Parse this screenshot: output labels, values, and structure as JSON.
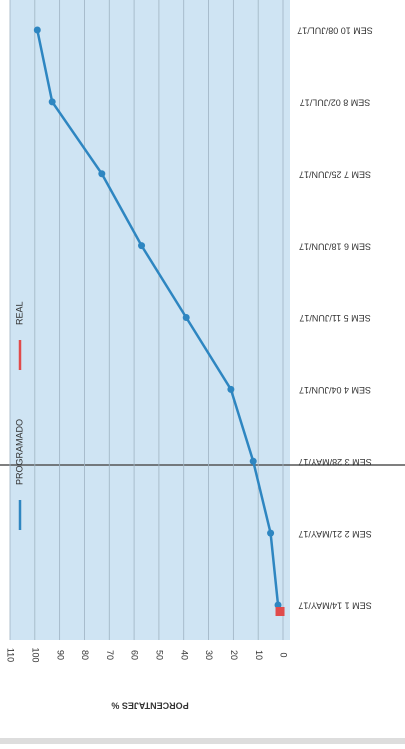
{
  "chart_data": {
    "type": "line",
    "y_label": "PORCENTAJES %",
    "categories": [
      "SEM 1 14/MAY/17",
      "SEM 2 21/MAY/17",
      "SEM 3 28/MAY/17",
      "SEM 4 04/JUN/17",
      "SEM 5 11/JUN/17",
      "SEM 6 18/JUN/17",
      "SEM 7 25/JUN/17",
      "SEM 8 02/JUL/17",
      "SEM 10 08/JUL/17"
    ],
    "series": [
      {
        "name": "PROGRAMADO",
        "color": "#2e86c1",
        "values": [
          2,
          5,
          12,
          21,
          39,
          57,
          73,
          93,
          99
        ]
      },
      {
        "name": "REAL",
        "color": "#e04b4b",
        "values": [
          1,
          null,
          null,
          null,
          null,
          null,
          null,
          null,
          null
        ]
      }
    ],
    "ylim": [
      0,
      110
    ],
    "yticks": [
      0,
      10,
      20,
      30,
      40,
      50,
      60,
      70,
      80,
      90,
      100,
      110
    ],
    "grid": true
  }
}
